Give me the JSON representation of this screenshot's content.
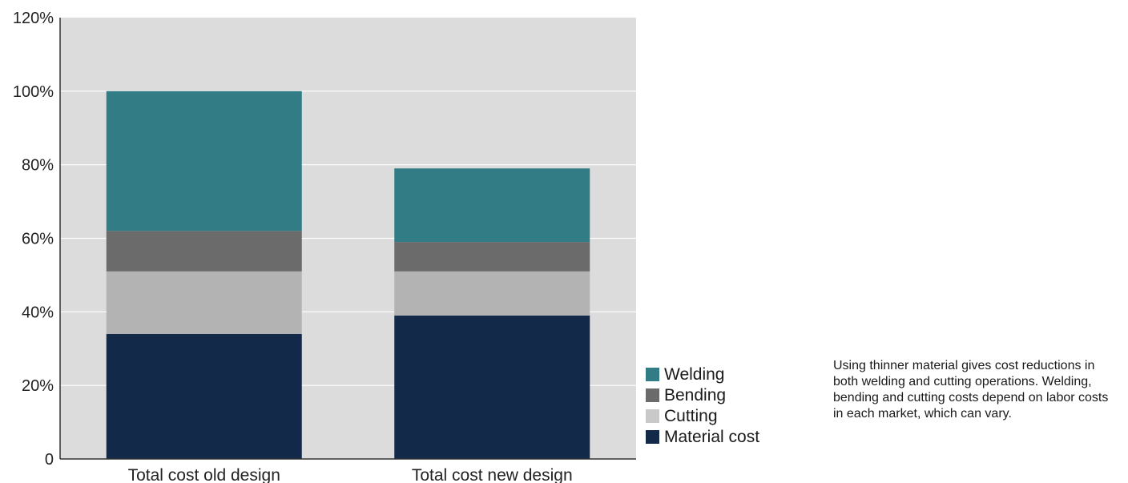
{
  "chart_data": {
    "type": "bar",
    "stacked": true,
    "categories": [
      "Total cost old design",
      "Total cost new design"
    ],
    "series": [
      {
        "name": "Material cost",
        "values": [
          34,
          39
        ],
        "color": "#13294a"
      },
      {
        "name": "Cutting",
        "values": [
          17,
          12
        ],
        "color": "#b3b3b3"
      },
      {
        "name": "Bending",
        "values": [
          11,
          8
        ],
        "color": "#6b6b6b"
      },
      {
        "name": "Welding",
        "values": [
          38,
          20
        ],
        "color": "#327d85"
      }
    ],
    "yticks": [
      "0",
      "20%",
      "40%",
      "60%",
      "80%",
      "100%",
      "120%"
    ],
    "ylim": [
      0,
      120
    ],
    "grid": true,
    "plot_background": "#dcdcdc",
    "legend_position": "right",
    "legend": [
      {
        "label": "Welding",
        "color": "#327d85"
      },
      {
        "label": "Bending",
        "color": "#6b6b6b"
      },
      {
        "label": "Cutting",
        "color": "#c9c9c9"
      },
      {
        "label": "Material cost",
        "color": "#13294a"
      }
    ]
  },
  "caption": "Using thinner material gives cost reductions in both welding and cutting operations. Welding, bending and cutting costs depend on labor costs in each market, which can vary."
}
